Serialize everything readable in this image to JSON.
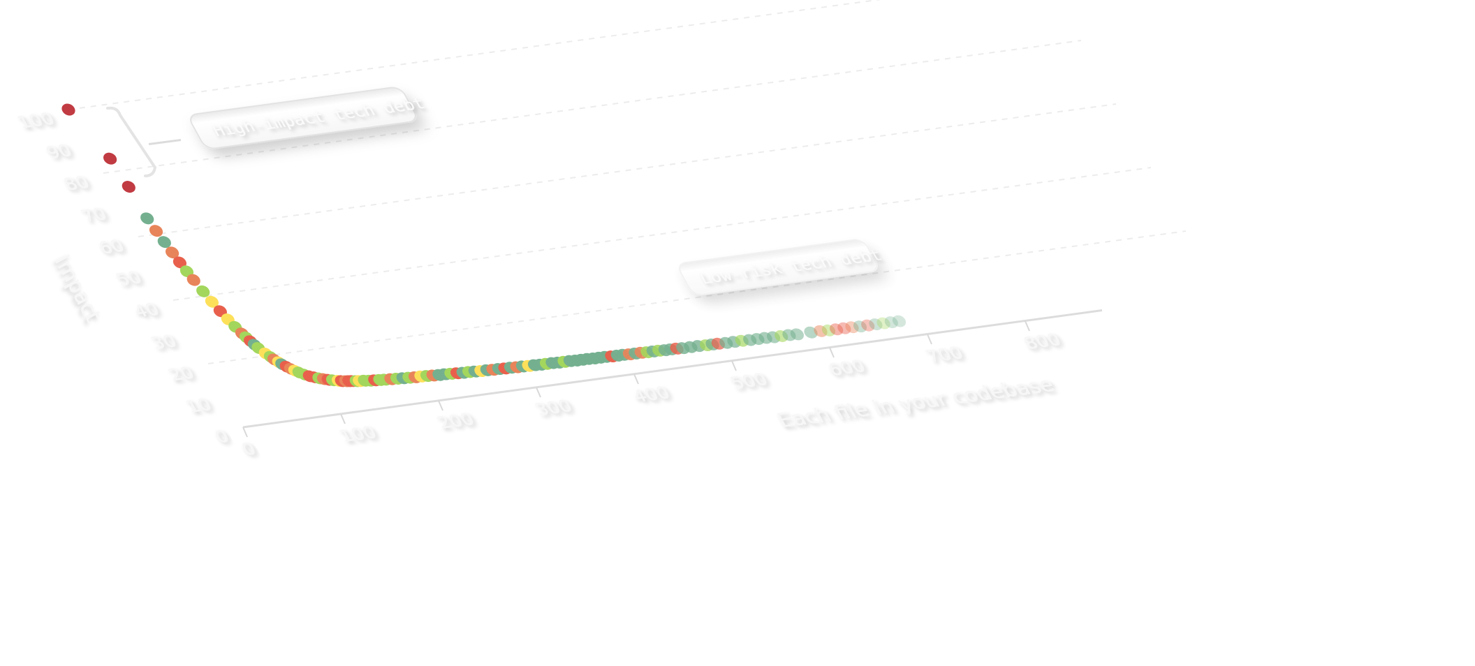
{
  "chart_data": {
    "type": "scatter",
    "title": "",
    "xlabel": "Each file in your codebase",
    "ylabel": "Impact",
    "xlim": [
      0,
      850
    ],
    "ylim": [
      0,
      100
    ],
    "x_ticks": [
      0,
      100,
      200,
      300,
      400,
      500,
      600,
      700,
      800
    ],
    "y_ticks": [
      0,
      10,
      20,
      30,
      40,
      50,
      60,
      70,
      80,
      90,
      100
    ],
    "grid": true,
    "palette": [
      "#c13b42",
      "#74b08f",
      "#e8845a",
      "#e8604c",
      "#a3d65c",
      "#fde05a"
    ],
    "annotations": [
      {
        "text": "High-impact tech debt",
        "y_range": [
          80,
          100
        ]
      },
      {
        "text": "Low-risk tech debt"
      }
    ],
    "points": [
      [
        0,
        100,
        0
      ],
      [
        14,
        84,
        0
      ],
      [
        17,
        75,
        0
      ],
      [
        18,
        65,
        1
      ],
      [
        20,
        61,
        2
      ],
      [
        22,
        57.4,
        1
      ],
      [
        24,
        54,
        2
      ],
      [
        26,
        50.8,
        3
      ],
      [
        28,
        47.9,
        4
      ],
      [
        30,
        45.1,
        2
      ],
      [
        33,
        41.4,
        4
      ],
      [
        36,
        38,
        5
      ],
      [
        39,
        34.9,
        3
      ],
      [
        42,
        32.2,
        5
      ],
      [
        45,
        29.7,
        4
      ],
      [
        48,
        27.5,
        2
      ],
      [
        50,
        26.2,
        4
      ],
      [
        52,
        24.9,
        3
      ],
      [
        54,
        23.7,
        1
      ],
      [
        56,
        22.6,
        4
      ],
      [
        60,
        20.7,
        5
      ],
      [
        63,
        19.5,
        4
      ],
      [
        65,
        18.6,
        2
      ],
      [
        68,
        17.6,
        5
      ],
      [
        70,
        16.9,
        1
      ],
      [
        73,
        16,
        3
      ],
      [
        76,
        15.2,
        2
      ],
      [
        79,
        14.5,
        5
      ],
      [
        82,
        13.8,
        4
      ],
      [
        86,
        13,
        4
      ],
      [
        90,
        12.3,
        3
      ],
      [
        94,
        11.8,
        3
      ],
      [
        98,
        11.3,
        4
      ],
      [
        102,
        10.9,
        2
      ],
      [
        106,
        10.5,
        3
      ],
      [
        110,
        10.2,
        4
      ],
      [
        115,
        9.8,
        5
      ],
      [
        118,
        9.6,
        3
      ],
      [
        122,
        9.4,
        2
      ],
      [
        125,
        9.3,
        3
      ],
      [
        128,
        9.2,
        3
      ],
      [
        132,
        9,
        4
      ],
      [
        135,
        8.9,
        5
      ],
      [
        140,
        8.8,
        4
      ],
      [
        145,
        8.6,
        4
      ],
      [
        150,
        8.5,
        3
      ],
      [
        155,
        8.4,
        4
      ],
      [
        160,
        8.3,
        4
      ],
      [
        166,
        8.2,
        2
      ],
      [
        172,
        8.1,
        4
      ],
      [
        178,
        8,
        1
      ],
      [
        184,
        7.9,
        4
      ],
      [
        190,
        7.8,
        2
      ],
      [
        196,
        7.8,
        5
      ],
      [
        202,
        7.7,
        4
      ],
      [
        208,
        7.6,
        2
      ],
      [
        214,
        7.5,
        1
      ],
      [
        220,
        7.5,
        1
      ],
      [
        226,
        7.4,
        4
      ],
      [
        232,
        7.3,
        3
      ],
      [
        238,
        7.2,
        1
      ],
      [
        244,
        7.2,
        4
      ],
      [
        250,
        7.1,
        1
      ],
      [
        256,
        7,
        5
      ],
      [
        262,
        7,
        1
      ],
      [
        268,
        6.9,
        2
      ],
      [
        274,
        6.9,
        1
      ],
      [
        280,
        6.8,
        3
      ],
      [
        286,
        6.8,
        1
      ],
      [
        292,
        6.7,
        2
      ],
      [
        298,
        6.7,
        1
      ],
      [
        304,
        6.6,
        5
      ],
      [
        310,
        6.6,
        1
      ],
      [
        316,
        6.5,
        1
      ],
      [
        322,
        6.5,
        4
      ],
      [
        328,
        6.5,
        1
      ],
      [
        334,
        6.4,
        1
      ],
      [
        340,
        6.4,
        4
      ],
      [
        346,
        6.4,
        1
      ],
      [
        352,
        6.3,
        1
      ],
      [
        358,
        6.3,
        1
      ],
      [
        364,
        6.3,
        1
      ],
      [
        370,
        6.2,
        1
      ],
      [
        376,
        6.2,
        1
      ],
      [
        382,
        6.2,
        1
      ],
      [
        388,
        6.1,
        3
      ],
      [
        394,
        6.1,
        1
      ],
      [
        400,
        6.1,
        1
      ],
      [
        406,
        6,
        2
      ],
      [
        412,
        6,
        1
      ],
      [
        418,
        6,
        2
      ],
      [
        424,
        5.9,
        4
      ],
      [
        430,
        5.9,
        1
      ],
      [
        436,
        5.9,
        4
      ],
      [
        442,
        5.8,
        1
      ],
      [
        448,
        5.8,
        1
      ],
      [
        454,
        5.8,
        3
      ],
      [
        460,
        5.7,
        1
      ],
      [
        468,
        5.7,
        1
      ],
      [
        476,
        5.7,
        1
      ],
      [
        484,
        5.6,
        4
      ],
      [
        490,
        5.6,
        1
      ],
      [
        496,
        5.6,
        3
      ],
      [
        504,
        5.5,
        1
      ],
      [
        512,
        5.5,
        1
      ],
      [
        520,
        5.5,
        4
      ],
      [
        528,
        5.4,
        1
      ],
      [
        536,
        5.4,
        1
      ],
      [
        544,
        5.4,
        1
      ],
      [
        552,
        5.3,
        1
      ],
      [
        560,
        5.3,
        4
      ],
      [
        568,
        5.3,
        1
      ],
      [
        576,
        5.2,
        1
      ],
      [
        590,
        5.2,
        1
      ],
      [
        600,
        5.2,
        2
      ],
      [
        608,
        5.1,
        4
      ],
      [
        616,
        5.1,
        3
      ],
      [
        624,
        5.1,
        3
      ],
      [
        632,
        5.1,
        2
      ],
      [
        640,
        5,
        1
      ],
      [
        648,
        5,
        3
      ],
      [
        656,
        5,
        1
      ],
      [
        664,
        5,
        4
      ],
      [
        672,
        5,
        1
      ],
      [
        680,
        5,
        1
      ]
    ]
  }
}
